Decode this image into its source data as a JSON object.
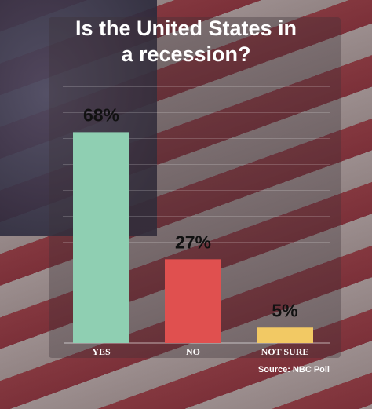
{
  "chart_data": {
    "type": "bar",
    "title": "Is the United States in a recession?",
    "categories": [
      "YES",
      "NO",
      "NOT SURE"
    ],
    "values": [
      68,
      27,
      5
    ],
    "value_labels": [
      "68%",
      "27%",
      "5%"
    ],
    "colors": [
      "#8fcfb2",
      "#e0504f",
      "#f2c964"
    ],
    "source": "Source: NBC Poll"
  }
}
